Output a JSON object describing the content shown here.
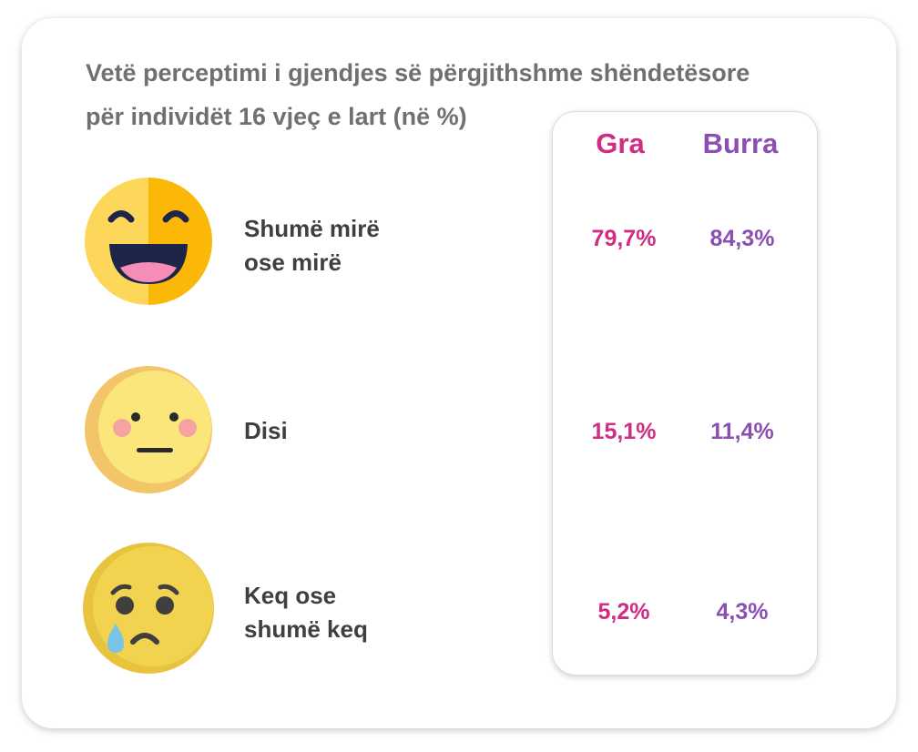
{
  "title": {
    "line1": "Vetë perceptimi i gjendjes së përgjithshme shëndetësore",
    "line2": "për individët 16 vjeç e lart (në %)"
  },
  "colors": {
    "women": "#d12c83",
    "men": "#8b4fb4",
    "label": "#3f3f3f",
    "title": "#707070"
  },
  "columns": {
    "women": "Gra",
    "men": "Burra"
  },
  "rows": [
    {
      "icon": "laughing-face-icon",
      "label_line1": "Shumë mirë",
      "label_line2": "ose mirë",
      "women": "79,7%",
      "men": "84,3%"
    },
    {
      "icon": "neutral-face-icon",
      "label_line1": "Disi",
      "label_line2": "",
      "women": "15,1%",
      "men": "11,4%"
    },
    {
      "icon": "crying-face-icon",
      "label_line1": "Keq ose",
      "label_line2": "shumë keq",
      "women": "5,2%",
      "men": "4,3%"
    }
  ]
}
